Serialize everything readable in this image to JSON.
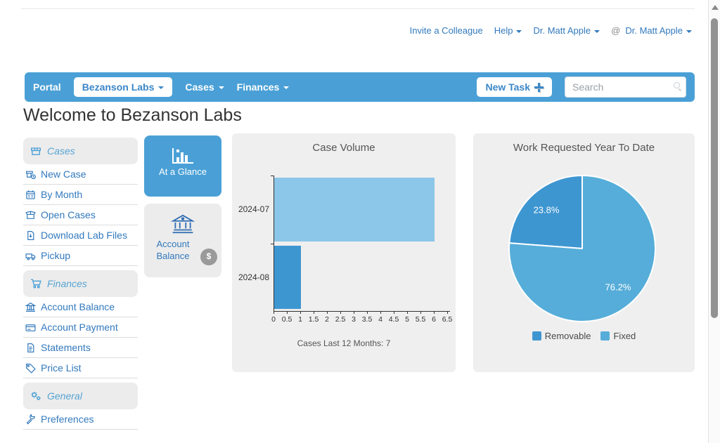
{
  "topbar": {
    "invite": "Invite a Colleague",
    "help": "Help",
    "user": "Dr. Matt Apple",
    "practice_at": "@",
    "practice": "Dr. Matt Apple"
  },
  "navbar": {
    "portal": "Portal",
    "lab_selector": "Bezanson Labs",
    "cases_menu": "Cases",
    "finances_menu": "Finances",
    "new_task": "New Task",
    "search_placeholder": "Search"
  },
  "page_title": "Welcome to Bezanson Labs",
  "sidebar": {
    "sections": [
      {
        "label": "Cases",
        "items": [
          {
            "label": "New Case"
          },
          {
            "label": "By Month"
          },
          {
            "label": "Open Cases"
          },
          {
            "label": "Download Lab Files"
          },
          {
            "label": "Pickup"
          }
        ]
      },
      {
        "label": "Finances",
        "items": [
          {
            "label": "Account Balance"
          },
          {
            "label": "Account Payment"
          },
          {
            "label": "Statements"
          },
          {
            "label": "Price List"
          }
        ]
      },
      {
        "label": "General",
        "items": [
          {
            "label": "Preferences"
          }
        ]
      }
    ]
  },
  "quick_actions": {
    "at_a_glance": {
      "label": "At a Glance",
      "active": true
    },
    "account_balance": {
      "label": "Account Balance",
      "badge": "$"
    }
  },
  "colors": {
    "navbar_blue": "#4aa0d6",
    "link_blue": "#3279bd",
    "card_gray": "#efefef",
    "bar_light": "#8cc6e8",
    "bar_dark": "#3e96d1",
    "pie_removable": "#3e96d1",
    "pie_fixed": "#56add9"
  },
  "chart_data": [
    {
      "type": "bar",
      "orientation": "horizontal",
      "title": "Case Volume",
      "categories": [
        "2024-07",
        "2024-08"
      ],
      "values": [
        6,
        1
      ],
      "bar_colors": [
        "#8cc6e8",
        "#3e96d1"
      ],
      "xlabel": "",
      "ylabel": "",
      "xlim": [
        0,
        6.5
      ],
      "xticks": [
        0,
        0.5,
        1,
        1.5,
        2,
        2.5,
        3,
        3.5,
        4,
        4.5,
        5,
        5.5,
        6,
        6.5
      ],
      "grid": false,
      "caption": "Cases Last 12 Months: 7"
    },
    {
      "type": "pie",
      "title": "Work Requested Year To Date",
      "labels": [
        "Removable",
        "Fixed"
      ],
      "values_pct": [
        23.8,
        76.2
      ],
      "slice_labels": [
        "23.8%",
        "76.2%"
      ],
      "colors": [
        "#3e96d1",
        "#56add9"
      ],
      "legend_position": "bottom",
      "start_angle": "top",
      "first_slice_direction": "counterclockwise"
    }
  ]
}
